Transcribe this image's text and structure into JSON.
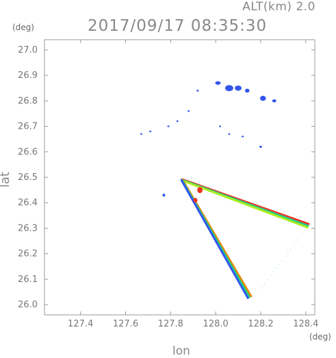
{
  "header": {
    "alt_label": "ALT(km)  2.0",
    "timestamp": "2017/09/17 08:35:30",
    "y_unit": "(deg)",
    "x_unit": "(deg)"
  },
  "chart_data": {
    "type": "scatter",
    "title": "2017/09/17 08:35:30",
    "xlabel": "lon",
    "ylabel": "lat",
    "xlim": [
      127.24,
      128.44
    ],
    "ylim": [
      25.96,
      27.04
    ],
    "x_ticks": [
      127.4,
      127.6,
      127.8,
      128.0,
      128.2,
      128.4
    ],
    "x_tick_labels": [
      "127.4",
      "127.6",
      "127.8",
      "128.0",
      "128.2",
      "128.4"
    ],
    "y_ticks": [
      26.0,
      26.1,
      26.2,
      26.3,
      26.4,
      26.5,
      26.6,
      26.7,
      26.8,
      26.9,
      27.0
    ],
    "y_tick_labels": [
      "26.0",
      "26.1",
      "26.2",
      "26.3",
      "26.4",
      "26.5",
      "26.6",
      "26.7",
      "26.8",
      "26.9",
      "27.0"
    ],
    "colors": {
      "weak": "#3355ee",
      "moderate": "#22cc88",
      "medium": "#aaee22",
      "strong": "#ee3322",
      "orange": "#ee8800"
    },
    "echo_blobs": [
      {
        "lon": 128.01,
        "lat": 26.87,
        "rx": 0.012,
        "ry": 0.007,
        "level": "weak"
      },
      {
        "lon": 128.06,
        "lat": 26.85,
        "rx": 0.018,
        "ry": 0.012,
        "level": "weak"
      },
      {
        "lon": 128.1,
        "lat": 26.85,
        "rx": 0.015,
        "ry": 0.01,
        "level": "weak"
      },
      {
        "lon": 128.14,
        "lat": 26.84,
        "rx": 0.01,
        "ry": 0.008,
        "level": "weak"
      },
      {
        "lon": 128.21,
        "lat": 26.81,
        "rx": 0.013,
        "ry": 0.01,
        "level": "weak"
      },
      {
        "lon": 128.26,
        "lat": 26.8,
        "rx": 0.009,
        "ry": 0.006,
        "level": "weak"
      },
      {
        "lon": 127.92,
        "lat": 26.84,
        "rx": 0.004,
        "ry": 0.004,
        "level": "weak"
      },
      {
        "lon": 127.88,
        "lat": 26.76,
        "rx": 0.004,
        "ry": 0.003,
        "level": "weak"
      },
      {
        "lon": 127.83,
        "lat": 26.72,
        "rx": 0.004,
        "ry": 0.003,
        "level": "weak"
      },
      {
        "lon": 127.79,
        "lat": 26.7,
        "rx": 0.004,
        "ry": 0.003,
        "level": "weak"
      },
      {
        "lon": 127.71,
        "lat": 26.68,
        "rx": 0.003,
        "ry": 0.003,
        "level": "weak"
      },
      {
        "lon": 127.67,
        "lat": 26.67,
        "rx": 0.003,
        "ry": 0.002,
        "level": "weak"
      },
      {
        "lon": 128.02,
        "lat": 26.7,
        "rx": 0.003,
        "ry": 0.002,
        "level": "weak"
      },
      {
        "lon": 128.06,
        "lat": 26.67,
        "rx": 0.004,
        "ry": 0.003,
        "level": "weak"
      },
      {
        "lon": 128.12,
        "lat": 26.66,
        "rx": 0.003,
        "ry": 0.002,
        "level": "weak"
      },
      {
        "lon": 128.2,
        "lat": 26.62,
        "rx": 0.006,
        "ry": 0.004,
        "level": "weak"
      },
      {
        "lon": 127.77,
        "lat": 26.43,
        "rx": 0.006,
        "ry": 0.006,
        "level": "weak"
      },
      {
        "lon": 127.93,
        "lat": 26.45,
        "rx": 0.012,
        "ry": 0.012,
        "level": "strong"
      },
      {
        "lon": 127.91,
        "lat": 26.41,
        "rx": 0.009,
        "ry": 0.009,
        "level": "strong"
      }
    ],
    "echo_bands": [
      {
        "from": [
          127.85,
          26.49
        ],
        "to": [
          128.41,
          26.31
        ],
        "width": 0.02,
        "levels": [
          "strong",
          "moderate",
          "medium"
        ]
      },
      {
        "from": [
          127.85,
          26.49
        ],
        "to": [
          128.15,
          26.03
        ],
        "width": 0.02,
        "levels": [
          "orange",
          "moderate",
          "weak"
        ]
      }
    ],
    "scan_edges": [
      {
        "from": [
          128.41,
          26.31
        ],
        "to": [
          128.18,
          26.04
        ]
      }
    ]
  }
}
